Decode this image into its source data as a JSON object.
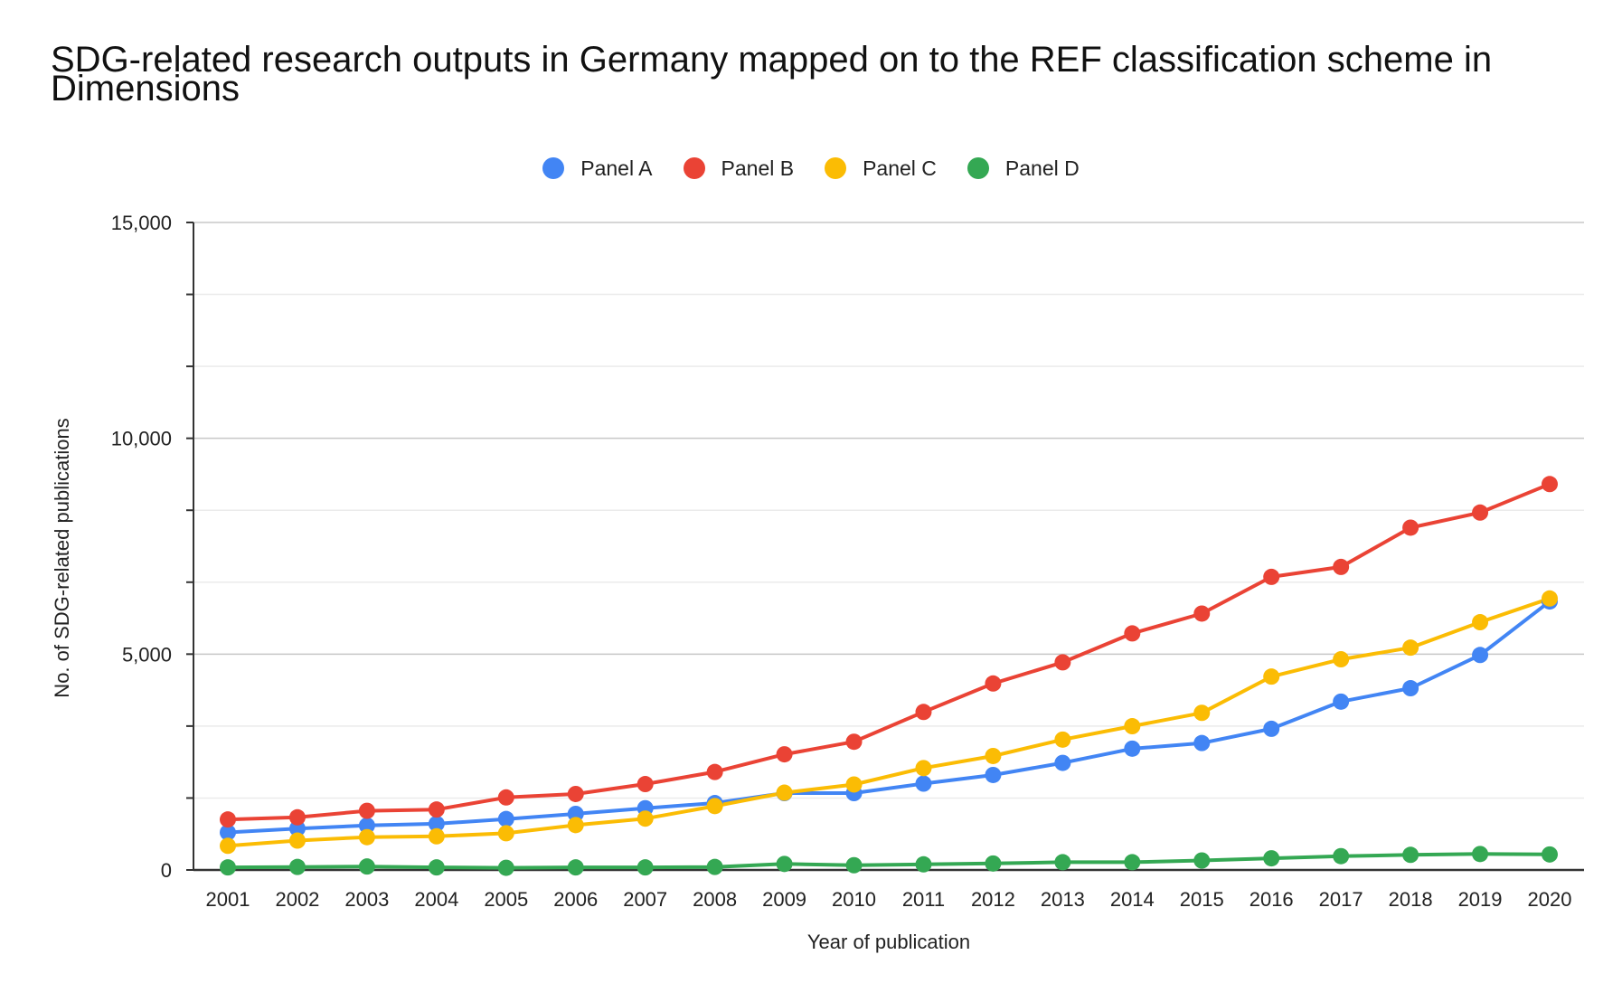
{
  "chart_data": {
    "type": "line",
    "title": "SDG-related research outputs in Germany mapped on to the REF classification scheme in Dimensions",
    "xlabel": "Year of publication",
    "ylabel": "No. of SDG-related publications",
    "ylim": [
      0,
      15000
    ],
    "yticks": [
      "0",
      "5,000",
      "10,000",
      "15,000"
    ],
    "y_tick_values": [
      0,
      5000,
      10000,
      15000
    ],
    "y_minor_step": 1666.67,
    "grid": true,
    "legend_position": "top",
    "categories": [
      "2001",
      "2002",
      "2003",
      "2004",
      "2005",
      "2006",
      "2007",
      "2008",
      "2009",
      "2010",
      "2011",
      "2012",
      "2013",
      "2014",
      "2015",
      "2016",
      "2017",
      "2018",
      "2019",
      "2020"
    ],
    "series": [
      {
        "name": "Panel A",
        "color": "#4285f4",
        "values": [
          870,
          960,
          1030,
          1070,
          1180,
          1300,
          1430,
          1550,
          1780,
          1780,
          2000,
          2200,
          2480,
          2810,
          2940,
          3270,
          3900,
          4210,
          4980,
          6220
        ]
      },
      {
        "name": "Panel B",
        "color": "#ea4335",
        "values": [
          1170,
          1220,
          1370,
          1400,
          1680,
          1760,
          1990,
          2270,
          2680,
          2970,
          3660,
          4320,
          4810,
          5480,
          5940,
          6790,
          7020,
          7930,
          8280,
          8940
        ]
      },
      {
        "name": "Panel C",
        "color": "#fbbc04",
        "values": [
          560,
          680,
          760,
          780,
          850,
          1040,
          1190,
          1480,
          1790,
          1980,
          2360,
          2640,
          3020,
          3330,
          3640,
          4480,
          4880,
          5150,
          5740,
          6290
        ]
      },
      {
        "name": "Panel D",
        "color": "#34a853",
        "values": [
          60,
          70,
          80,
          60,
          50,
          60,
          60,
          70,
          140,
          110,
          130,
          150,
          180,
          180,
          220,
          270,
          320,
          350,
          370,
          360
        ]
      }
    ]
  }
}
